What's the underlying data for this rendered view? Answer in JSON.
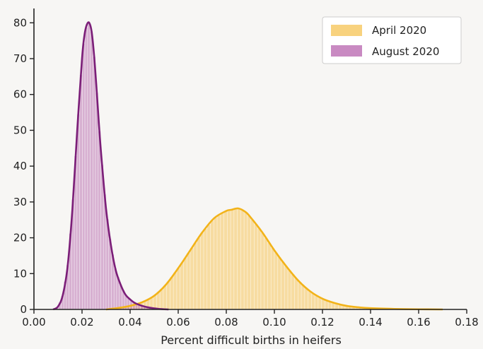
{
  "chart_data": {
    "type": "area",
    "title": "",
    "xlabel": "Percent difficult births in heifers",
    "ylabel": "",
    "xlim": [
      0.0,
      0.18
    ],
    "ylim": [
      0,
      84
    ],
    "x_ticks": [
      "0.00",
      "0.02",
      "0.04",
      "0.06",
      "0.08",
      "0.10",
      "0.12",
      "0.14",
      "0.16",
      "0.18"
    ],
    "x_tick_values": [
      0.0,
      0.02,
      0.04,
      0.06,
      0.08,
      0.1,
      0.12,
      0.14,
      0.16,
      0.18
    ],
    "y_ticks": [
      "0",
      "10",
      "20",
      "30",
      "40",
      "50",
      "60",
      "70",
      "80"
    ],
    "y_tick_values": [
      0,
      10,
      20,
      30,
      40,
      50,
      60,
      70,
      80
    ],
    "grid": false,
    "legend_position": "top-right",
    "series": [
      {
        "name": "April 2020",
        "color": "#f2b319",
        "x": [
          0.03,
          0.035,
          0.04,
          0.045,
          0.05,
          0.055,
          0.06,
          0.065,
          0.07,
          0.075,
          0.08,
          0.082,
          0.085,
          0.088,
          0.09,
          0.095,
          0.1,
          0.105,
          0.11,
          0.115,
          0.12,
          0.125,
          0.13,
          0.135,
          0.14,
          0.15,
          0.16,
          0.17
        ],
        "values": [
          0.0,
          0.4,
          1.0,
          2.0,
          3.8,
          7.0,
          11.5,
          16.5,
          21.5,
          25.5,
          27.5,
          27.8,
          28.2,
          27.2,
          25.8,
          21.5,
          16.5,
          12.0,
          8.0,
          5.0,
          3.0,
          1.8,
          1.0,
          0.6,
          0.35,
          0.15,
          0.05,
          0.0
        ]
      },
      {
        "name": "August 2020",
        "color": "#7b1e78",
        "x": [
          0.008,
          0.01,
          0.012,
          0.014,
          0.016,
          0.018,
          0.02,
          0.021,
          0.022,
          0.023,
          0.024,
          0.025,
          0.026,
          0.027,
          0.028,
          0.03,
          0.032,
          0.034,
          0.036,
          0.038,
          0.04,
          0.042,
          0.045,
          0.048,
          0.052,
          0.056
        ],
        "values": [
          0.0,
          0.8,
          4.0,
          12.0,
          28.0,
          50.0,
          70.0,
          76.5,
          79.5,
          80.0,
          77.5,
          71.0,
          62.0,
          52.0,
          43.0,
          28.0,
          18.0,
          11.0,
          7.0,
          4.2,
          2.8,
          1.8,
          1.0,
          0.5,
          0.15,
          0.0
        ]
      }
    ]
  }
}
